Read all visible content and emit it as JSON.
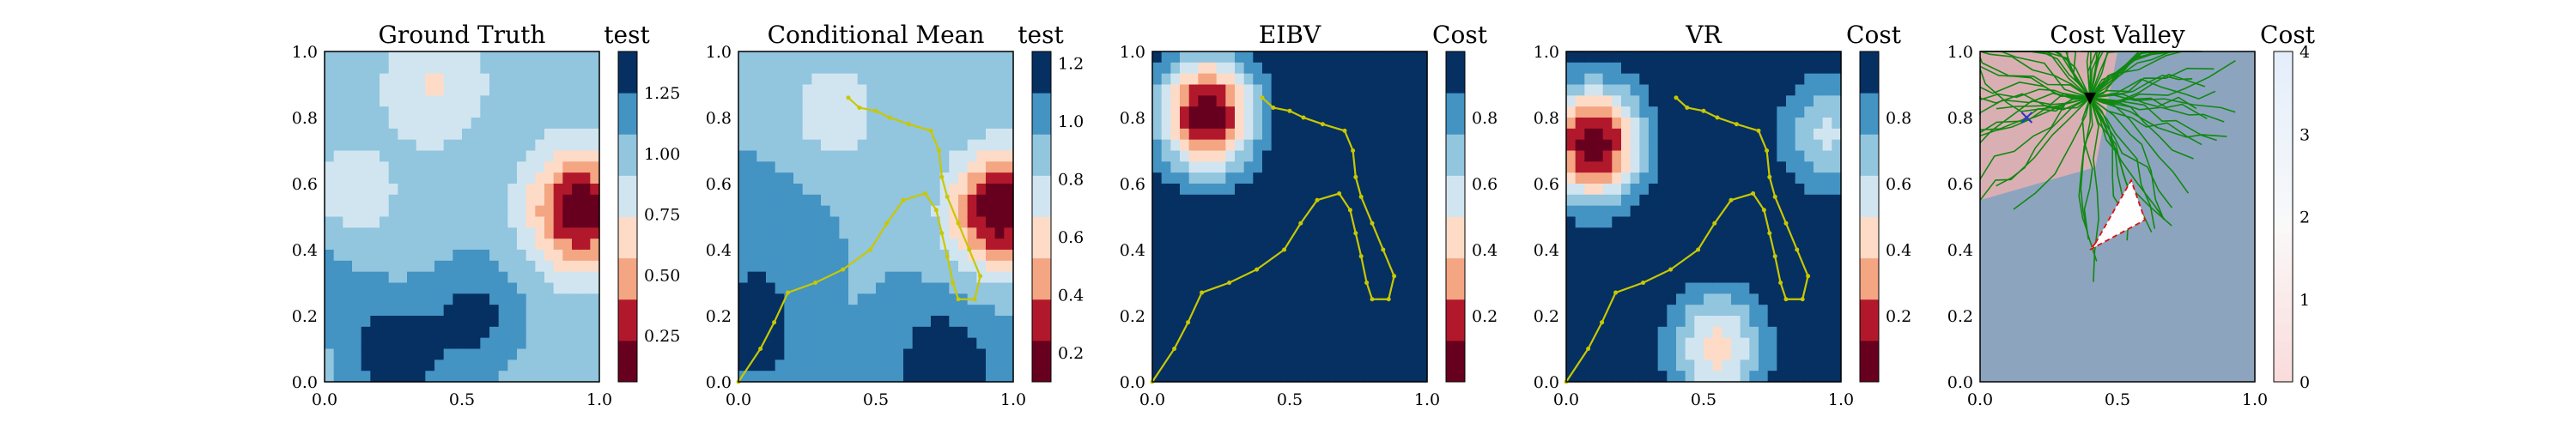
{
  "figure": {
    "panels": [
      {
        "title": "Ground Truth",
        "colorbar": {
          "label": "test",
          "ticks": [
            "0.25",
            "0.50",
            "0.75",
            "1.00",
            "1.25"
          ],
          "tick_values": [
            0.25,
            0.5,
            0.75,
            1.0,
            1.25
          ],
          "range": [
            0.06,
            1.42
          ]
        },
        "xticks": [
          "0.0",
          "0.5",
          "1.0"
        ],
        "yticks": [
          "0.0",
          "0.2",
          "0.4",
          "0.6",
          "0.8",
          "1.0"
        ]
      },
      {
        "title": "Conditional Mean",
        "colorbar": {
          "label": "test",
          "ticks": [
            "0.2",
            "0.4",
            "0.6",
            "0.8",
            "1.0",
            "1.2"
          ],
          "tick_values": [
            0.2,
            0.4,
            0.6,
            0.8,
            1.0,
            1.2
          ],
          "range": [
            0.1,
            1.24
          ]
        },
        "xticks": [
          "0.0",
          "0.5",
          "1.0"
        ],
        "yticks": [
          "0.0",
          "0.2",
          "0.4",
          "0.6",
          "0.8",
          "1.0"
        ]
      },
      {
        "title": "EIBV",
        "colorbar": {
          "label": "Cost",
          "ticks": [
            "0.2",
            "0.4",
            "0.6",
            "0.8"
          ],
          "tick_values": [
            0.2,
            0.4,
            0.6,
            0.8
          ],
          "range": [
            0.0,
            1.0
          ]
        },
        "xticks": [
          "0.0",
          "0.5",
          "1.0"
        ],
        "yticks": [
          "0.0",
          "0.2",
          "0.4",
          "0.6",
          "0.8",
          "1.0"
        ]
      },
      {
        "title": "VR",
        "colorbar": {
          "label": "Cost",
          "ticks": [
            "0.2",
            "0.4",
            "0.6",
            "0.8"
          ],
          "tick_values": [
            0.2,
            0.4,
            0.6,
            0.8
          ],
          "range": [
            0.0,
            1.0
          ]
        },
        "xticks": [
          "0.0",
          "0.5",
          "1.0"
        ],
        "yticks": [
          "0.0",
          "0.2",
          "0.4",
          "0.6",
          "0.8",
          "1.0"
        ]
      },
      {
        "title": "Cost Valley",
        "colorbar": {
          "label": "Cost",
          "ticks": [
            "0",
            "1",
            "2",
            "3",
            "4"
          ],
          "tick_values": [
            0,
            1,
            2,
            3,
            4
          ],
          "range": [
            0,
            4
          ]
        },
        "xticks": [
          "0.0",
          "0.5",
          "1.0"
        ],
        "yticks": [
          "0.0",
          "0.2",
          "0.4",
          "0.6",
          "0.8",
          "1.0"
        ]
      }
    ]
  },
  "colors": {
    "rdbu": [
      "#67001f",
      "#b2182b",
      "#d6604d",
      "#f4a582",
      "#fddbc7",
      "#f7f7f7",
      "#d1e5f0",
      "#92c5de",
      "#4393c3",
      "#2166ac",
      "#053061"
    ],
    "path": "#c8c800",
    "tree": "#118811",
    "obstacle_outline": "#dd1111",
    "start_marker": "#000000",
    "target_marker": "#3333cc"
  },
  "chart_data": [
    {
      "type": "heatmap",
      "title": "Ground Truth",
      "colorbar_label": "test",
      "xlim": [
        0,
        1
      ],
      "ylim": [
        0,
        1
      ],
      "features": [
        {
          "kind": "low",
          "x": 0.93,
          "y": 0.52,
          "value": 0.1
        },
        {
          "kind": "low",
          "x": 0.4,
          "y": 0.9,
          "value": 0.72
        },
        {
          "kind": "low",
          "x": 0.1,
          "y": 0.55,
          "value": 0.8
        },
        {
          "kind": "high",
          "x": 0.25,
          "y": 0.08,
          "value": 1.38
        },
        {
          "kind": "high",
          "x": 0.55,
          "y": 0.2,
          "value": 1.3
        },
        {
          "kind": "high",
          "x": 0.02,
          "y": 0.35,
          "value": 1.15
        }
      ],
      "base": 1.0
    },
    {
      "type": "heatmap",
      "title": "Conditional Mean",
      "colorbar_label": "test",
      "xlim": [
        0,
        1
      ],
      "ylim": [
        0,
        1
      ],
      "features": [
        {
          "kind": "low",
          "x": 0.95,
          "y": 0.52,
          "value": 0.1
        },
        {
          "kind": "low",
          "x": 0.35,
          "y": 0.82,
          "value": 0.72
        },
        {
          "kind": "high",
          "x": 0.75,
          "y": 0.05,
          "value": 1.24
        },
        {
          "kind": "high",
          "x": 0.05,
          "y": 0.15,
          "value": 1.2
        },
        {
          "kind": "high",
          "x": 0.1,
          "y": 0.45,
          "value": 1.05
        }
      ],
      "base": 0.95,
      "path": [
        [
          0.0,
          0.0
        ],
        [
          0.08,
          0.1
        ],
        [
          0.13,
          0.18
        ],
        [
          0.18,
          0.27
        ],
        [
          0.28,
          0.3
        ],
        [
          0.38,
          0.34
        ],
        [
          0.48,
          0.4
        ],
        [
          0.54,
          0.48
        ],
        [
          0.6,
          0.55
        ],
        [
          0.68,
          0.57
        ],
        [
          0.72,
          0.52
        ],
        [
          0.74,
          0.45
        ],
        [
          0.76,
          0.38
        ],
        [
          0.78,
          0.3
        ],
        [
          0.8,
          0.25
        ],
        [
          0.86,
          0.25
        ],
        [
          0.88,
          0.32
        ],
        [
          0.84,
          0.4
        ],
        [
          0.8,
          0.48
        ],
        [
          0.76,
          0.56
        ],
        [
          0.74,
          0.62
        ],
        [
          0.73,
          0.7
        ],
        [
          0.7,
          0.76
        ],
        [
          0.62,
          0.78
        ],
        [
          0.55,
          0.8
        ],
        [
          0.5,
          0.82
        ],
        [
          0.44,
          0.83
        ],
        [
          0.4,
          0.86
        ]
      ]
    },
    {
      "type": "heatmap",
      "title": "EIBV",
      "colorbar_label": "Cost",
      "xlim": [
        0,
        1
      ],
      "ylim": [
        0,
        1
      ],
      "features": [
        {
          "kind": "low",
          "x": 0.2,
          "y": 0.81,
          "value": 0.02
        },
        {
          "kind": "high",
          "x": 0.9,
          "y": 0.8,
          "value": 1.0
        }
      ],
      "base": 1.0,
      "path": [
        [
          0.0,
          0.0
        ],
        [
          0.08,
          0.1
        ],
        [
          0.13,
          0.18
        ],
        [
          0.18,
          0.27
        ],
        [
          0.28,
          0.3
        ],
        [
          0.38,
          0.34
        ],
        [
          0.48,
          0.4
        ],
        [
          0.54,
          0.48
        ],
        [
          0.6,
          0.55
        ],
        [
          0.68,
          0.57
        ],
        [
          0.72,
          0.52
        ],
        [
          0.74,
          0.45
        ],
        [
          0.76,
          0.38
        ],
        [
          0.78,
          0.3
        ],
        [
          0.8,
          0.25
        ],
        [
          0.86,
          0.25
        ],
        [
          0.88,
          0.32
        ],
        [
          0.84,
          0.4
        ],
        [
          0.8,
          0.48
        ],
        [
          0.76,
          0.56
        ],
        [
          0.74,
          0.62
        ],
        [
          0.73,
          0.7
        ],
        [
          0.7,
          0.76
        ],
        [
          0.62,
          0.78
        ],
        [
          0.55,
          0.8
        ],
        [
          0.5,
          0.82
        ],
        [
          0.44,
          0.83
        ],
        [
          0.4,
          0.86
        ]
      ]
    },
    {
      "type": "heatmap",
      "title": "VR",
      "colorbar_label": "Cost",
      "xlim": [
        0,
        1
      ],
      "ylim": [
        0,
        1
      ],
      "features": [
        {
          "kind": "low",
          "x": 0.1,
          "y": 0.72,
          "value": 0.02
        },
        {
          "kind": "low",
          "x": 0.55,
          "y": 0.1,
          "value": 0.45
        },
        {
          "kind": "low",
          "x": 0.95,
          "y": 0.75,
          "value": 0.6
        }
      ],
      "base": 1.0,
      "path": [
        [
          0.0,
          0.0
        ],
        [
          0.08,
          0.1
        ],
        [
          0.13,
          0.18
        ],
        [
          0.18,
          0.27
        ],
        [
          0.28,
          0.3
        ],
        [
          0.38,
          0.34
        ],
        [
          0.48,
          0.4
        ],
        [
          0.54,
          0.48
        ],
        [
          0.6,
          0.55
        ],
        [
          0.68,
          0.57
        ],
        [
          0.72,
          0.52
        ],
        [
          0.74,
          0.45
        ],
        [
          0.76,
          0.38
        ],
        [
          0.78,
          0.3
        ],
        [
          0.8,
          0.25
        ],
        [
          0.86,
          0.25
        ],
        [
          0.88,
          0.32
        ],
        [
          0.84,
          0.4
        ],
        [
          0.8,
          0.48
        ],
        [
          0.76,
          0.56
        ],
        [
          0.74,
          0.62
        ],
        [
          0.73,
          0.7
        ],
        [
          0.7,
          0.76
        ],
        [
          0.62,
          0.78
        ],
        [
          0.55,
          0.8
        ],
        [
          0.5,
          0.82
        ],
        [
          0.44,
          0.83
        ],
        [
          0.4,
          0.86
        ]
      ]
    },
    {
      "type": "heatmap",
      "title": "Cost Valley",
      "colorbar_label": "Cost",
      "xlim": [
        0,
        1
      ],
      "ylim": [
        0,
        1
      ],
      "obstacle": [
        [
          0.42,
          0.42
        ],
        [
          0.55,
          0.61
        ],
        [
          0.6,
          0.49
        ],
        [
          0.4,
          0.4
        ]
      ],
      "current_location": [
        0.4,
        0.86
      ],
      "target_location": [
        0.17,
        0.8
      ]
    }
  ]
}
